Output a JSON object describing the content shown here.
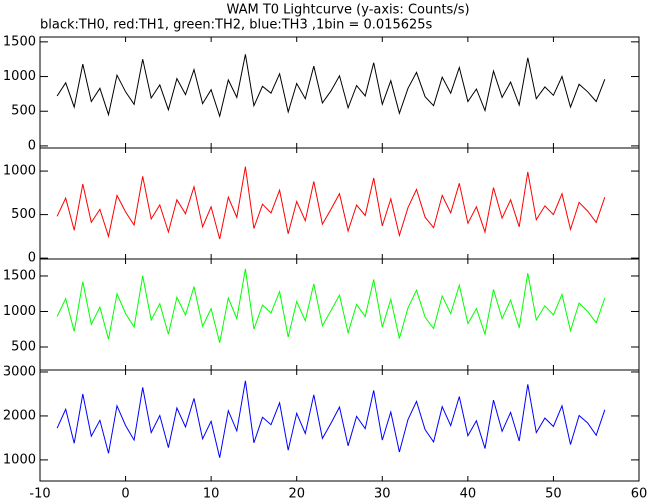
{
  "chart_data": {
    "type": "line",
    "title": "WAM T0 Lightcurve (y-axis: Counts/s)",
    "subtitle": "black:TH0, red:TH1, green:TH2, blue:TH3 ,1bin = 0.015625s",
    "xlim": [
      -10,
      60
    ],
    "xticks": [
      -10,
      0,
      10,
      20,
      30,
      40,
      50,
      60
    ],
    "x": [
      -8,
      -7,
      -6,
      -5,
      -4,
      -3,
      -2,
      -1,
      0,
      1,
      2,
      3,
      4,
      5,
      6,
      7,
      8,
      9,
      10,
      11,
      12,
      13,
      14,
      15,
      16,
      17,
      18,
      19,
      20,
      21,
      22,
      23,
      24,
      25,
      26,
      27,
      28,
      29,
      30,
      31,
      32,
      33,
      34,
      35,
      36,
      37,
      38,
      39,
      40,
      41,
      42,
      43,
      44,
      45,
      46,
      47,
      48,
      49,
      50,
      51,
      52,
      53,
      54,
      55,
      56
    ],
    "panels": [
      {
        "ylim": [
          -30,
          1570
        ],
        "yticks": [
          0,
          500,
          1000,
          1500
        ],
        "series": [
          {
            "name": "TH0",
            "color": "#000000",
            "values": [
              720,
              910,
              560,
              1180,
              640,
              830,
              450,
              1020,
              780,
              600,
              1250,
              690,
              880,
              520,
              970,
              740,
              1100,
              610,
              810,
              430,
              950,
              700,
              1320,
              580,
              860,
              760,
              1040,
              490,
              900,
              680,
              1150,
              620,
              790,
              1010,
              550,
              870,
              720,
              1200,
              600,
              940,
              470,
              830,
              1060,
              710,
              580,
              990,
              760,
              1130,
              640,
              820,
              510,
              1080,
              700,
              920,
              590,
              1270,
              680,
              850,
              730,
              1000,
              560,
              890,
              780,
              640,
              960
            ]
          }
        ]
      },
      {
        "ylim": [
          -10,
          1265
        ],
        "yticks": [
          0,
          500,
          1000
        ],
        "series": [
          {
            "name": "TH1",
            "color": "#ff0000",
            "values": [
              480,
              690,
              320,
              850,
              410,
              560,
              250,
              720,
              530,
              380,
              940,
              450,
              610,
              300,
              670,
              510,
              820,
              360,
              590,
              220,
              700,
              470,
              1050,
              340,
              620,
              520,
              780,
              280,
              650,
              430,
              880,
              390,
              560,
              740,
              310,
              610,
              490,
              920,
              370,
              680,
              260,
              580,
              790,
              470,
              350,
              720,
              520,
              860,
              400,
              590,
              300,
              810,
              460,
              670,
              360,
              990,
              440,
              600,
              500,
              740,
              330,
              640,
              540,
              410,
              700
            ]
          }
        ]
      },
      {
        "ylim": [
          176,
          1739
        ],
        "yticks": [
          500,
          1000,
          1500
        ],
        "series": [
          {
            "name": "TH2",
            "color": "#00ff00",
            "values": [
              930,
              1180,
              720,
              1420,
              820,
              1060,
              610,
              1250,
              970,
              780,
              1500,
              880,
              1110,
              680,
              1200,
              950,
              1350,
              790,
              1040,
              560,
              1190,
              900,
              1600,
              750,
              1090,
              980,
              1280,
              640,
              1140,
              870,
              1390,
              800,
              1010,
              1230,
              700,
              1100,
              930,
              1450,
              780,
              1170,
              620,
              1050,
              1300,
              920,
              760,
              1220,
              970,
              1370,
              830,
              1040,
              680,
              1310,
              900,
              1160,
              770,
              1540,
              880,
              1080,
              950,
              1240,
              730,
              1120,
              1000,
              840,
              1190
            ]
          }
        ]
      },
      {
        "ylim": [
          520,
          3045
        ],
        "yticks": [
          1000,
          2000,
          3000
        ],
        "series": [
          {
            "name": "TH3",
            "color": "#0000ff",
            "values": [
              1720,
              2150,
              1380,
              2500,
              1540,
              1900,
              1150,
              2230,
              1780,
              1450,
              2650,
              1620,
              2010,
              1280,
              2180,
              1750,
              2400,
              1480,
              1880,
              1050,
              2120,
              1660,
              2800,
              1390,
              1970,
              1800,
              2300,
              1220,
              2060,
              1600,
              2480,
              1490,
              1830,
              2200,
              1320,
              1990,
              1710,
              2580,
              1450,
              2090,
              1180,
              1920,
              2330,
              1690,
              1410,
              2210,
              1780,
              2440,
              1550,
              1890,
              1260,
              2360,
              1650,
              2080,
              1430,
              2720,
              1620,
              1950,
              1760,
              2230,
              1350,
              2010,
              1840,
              1560,
              2140
            ]
          }
        ]
      }
    ]
  }
}
